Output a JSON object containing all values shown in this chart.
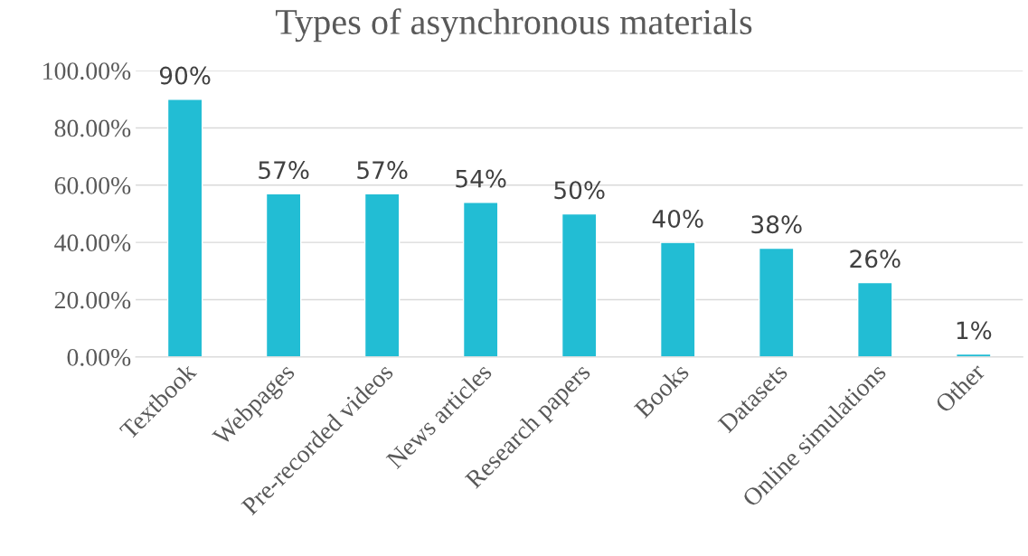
{
  "chart_data": {
    "type": "bar",
    "title": "Types of asynchronous materials",
    "categories": [
      "Textbook",
      "Webpages",
      "Pre-recorded videos",
      "News articles",
      "Research papers",
      "Books",
      "Datasets",
      "Online simulations",
      "Other"
    ],
    "values": [
      90,
      57,
      57,
      54,
      50,
      40,
      38,
      26,
      1
    ],
    "value_labels": [
      "90%",
      "57%",
      "57%",
      "54%",
      "50%",
      "40%",
      "38%",
      "26%",
      "1%"
    ],
    "color": "#22bdd4",
    "ylim": [
      0,
      100
    ],
    "yticks": [
      {
        "value": 0,
        "label": "0.00%"
      },
      {
        "value": 20,
        "label": "20.00%"
      },
      {
        "value": 40,
        "label": "40.00%"
      },
      {
        "value": 60,
        "label": "60.00%"
      },
      {
        "value": 80,
        "label": "80.00%"
      },
      {
        "value": 100,
        "label": "100.00%"
      }
    ],
    "grid": "y",
    "legend": false
  }
}
